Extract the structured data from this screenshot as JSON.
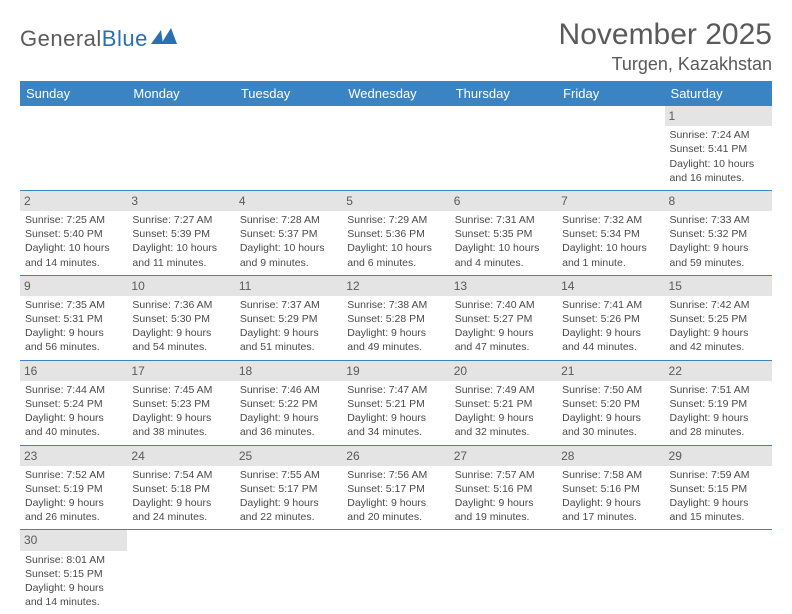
{
  "logo": {
    "part1": "General",
    "part2": "Blue"
  },
  "title": "November 2025",
  "location": "Turgen, Kazakhstan",
  "colors": {
    "header_bg": "#3b84c4",
    "header_text": "#ffffff",
    "daynum_bg": "#e4e4e4",
    "border": "#3b84c4",
    "text": "#4a4a4a",
    "logo_gray": "#5a5a5a",
    "logo_blue": "#2a6fb0"
  },
  "weekdays": [
    "Sunday",
    "Monday",
    "Tuesday",
    "Wednesday",
    "Thursday",
    "Friday",
    "Saturday"
  ],
  "weeks": [
    [
      null,
      null,
      null,
      null,
      null,
      null,
      {
        "n": "1",
        "sunrise": "Sunrise: 7:24 AM",
        "sunset": "Sunset: 5:41 PM",
        "daylight": "Daylight: 10 hours and 16 minutes."
      }
    ],
    [
      {
        "n": "2",
        "sunrise": "Sunrise: 7:25 AM",
        "sunset": "Sunset: 5:40 PM",
        "daylight": "Daylight: 10 hours and 14 minutes."
      },
      {
        "n": "3",
        "sunrise": "Sunrise: 7:27 AM",
        "sunset": "Sunset: 5:39 PM",
        "daylight": "Daylight: 10 hours and 11 minutes."
      },
      {
        "n": "4",
        "sunrise": "Sunrise: 7:28 AM",
        "sunset": "Sunset: 5:37 PM",
        "daylight": "Daylight: 10 hours and 9 minutes."
      },
      {
        "n": "5",
        "sunrise": "Sunrise: 7:29 AM",
        "sunset": "Sunset: 5:36 PM",
        "daylight": "Daylight: 10 hours and 6 minutes."
      },
      {
        "n": "6",
        "sunrise": "Sunrise: 7:31 AM",
        "sunset": "Sunset: 5:35 PM",
        "daylight": "Daylight: 10 hours and 4 minutes."
      },
      {
        "n": "7",
        "sunrise": "Sunrise: 7:32 AM",
        "sunset": "Sunset: 5:34 PM",
        "daylight": "Daylight: 10 hours and 1 minute."
      },
      {
        "n": "8",
        "sunrise": "Sunrise: 7:33 AM",
        "sunset": "Sunset: 5:32 PM",
        "daylight": "Daylight: 9 hours and 59 minutes."
      }
    ],
    [
      {
        "n": "9",
        "sunrise": "Sunrise: 7:35 AM",
        "sunset": "Sunset: 5:31 PM",
        "daylight": "Daylight: 9 hours and 56 minutes."
      },
      {
        "n": "10",
        "sunrise": "Sunrise: 7:36 AM",
        "sunset": "Sunset: 5:30 PM",
        "daylight": "Daylight: 9 hours and 54 minutes."
      },
      {
        "n": "11",
        "sunrise": "Sunrise: 7:37 AM",
        "sunset": "Sunset: 5:29 PM",
        "daylight": "Daylight: 9 hours and 51 minutes."
      },
      {
        "n": "12",
        "sunrise": "Sunrise: 7:38 AM",
        "sunset": "Sunset: 5:28 PM",
        "daylight": "Daylight: 9 hours and 49 minutes."
      },
      {
        "n": "13",
        "sunrise": "Sunrise: 7:40 AM",
        "sunset": "Sunset: 5:27 PM",
        "daylight": "Daylight: 9 hours and 47 minutes."
      },
      {
        "n": "14",
        "sunrise": "Sunrise: 7:41 AM",
        "sunset": "Sunset: 5:26 PM",
        "daylight": "Daylight: 9 hours and 44 minutes."
      },
      {
        "n": "15",
        "sunrise": "Sunrise: 7:42 AM",
        "sunset": "Sunset: 5:25 PM",
        "daylight": "Daylight: 9 hours and 42 minutes."
      }
    ],
    [
      {
        "n": "16",
        "sunrise": "Sunrise: 7:44 AM",
        "sunset": "Sunset: 5:24 PM",
        "daylight": "Daylight: 9 hours and 40 minutes."
      },
      {
        "n": "17",
        "sunrise": "Sunrise: 7:45 AM",
        "sunset": "Sunset: 5:23 PM",
        "daylight": "Daylight: 9 hours and 38 minutes."
      },
      {
        "n": "18",
        "sunrise": "Sunrise: 7:46 AM",
        "sunset": "Sunset: 5:22 PM",
        "daylight": "Daylight: 9 hours and 36 minutes."
      },
      {
        "n": "19",
        "sunrise": "Sunrise: 7:47 AM",
        "sunset": "Sunset: 5:21 PM",
        "daylight": "Daylight: 9 hours and 34 minutes."
      },
      {
        "n": "20",
        "sunrise": "Sunrise: 7:49 AM",
        "sunset": "Sunset: 5:21 PM",
        "daylight": "Daylight: 9 hours and 32 minutes."
      },
      {
        "n": "21",
        "sunrise": "Sunrise: 7:50 AM",
        "sunset": "Sunset: 5:20 PM",
        "daylight": "Daylight: 9 hours and 30 minutes."
      },
      {
        "n": "22",
        "sunrise": "Sunrise: 7:51 AM",
        "sunset": "Sunset: 5:19 PM",
        "daylight": "Daylight: 9 hours and 28 minutes."
      }
    ],
    [
      {
        "n": "23",
        "sunrise": "Sunrise: 7:52 AM",
        "sunset": "Sunset: 5:19 PM",
        "daylight": "Daylight: 9 hours and 26 minutes."
      },
      {
        "n": "24",
        "sunrise": "Sunrise: 7:54 AM",
        "sunset": "Sunset: 5:18 PM",
        "daylight": "Daylight: 9 hours and 24 minutes."
      },
      {
        "n": "25",
        "sunrise": "Sunrise: 7:55 AM",
        "sunset": "Sunset: 5:17 PM",
        "daylight": "Daylight: 9 hours and 22 minutes."
      },
      {
        "n": "26",
        "sunrise": "Sunrise: 7:56 AM",
        "sunset": "Sunset: 5:17 PM",
        "daylight": "Daylight: 9 hours and 20 minutes."
      },
      {
        "n": "27",
        "sunrise": "Sunrise: 7:57 AM",
        "sunset": "Sunset: 5:16 PM",
        "daylight": "Daylight: 9 hours and 19 minutes."
      },
      {
        "n": "28",
        "sunrise": "Sunrise: 7:58 AM",
        "sunset": "Sunset: 5:16 PM",
        "daylight": "Daylight: 9 hours and 17 minutes."
      },
      {
        "n": "29",
        "sunrise": "Sunrise: 7:59 AM",
        "sunset": "Sunset: 5:15 PM",
        "daylight": "Daylight: 9 hours and 15 minutes."
      }
    ],
    [
      {
        "n": "30",
        "sunrise": "Sunrise: 8:01 AM",
        "sunset": "Sunset: 5:15 PM",
        "daylight": "Daylight: 9 hours and 14 minutes."
      },
      null,
      null,
      null,
      null,
      null,
      null
    ]
  ]
}
